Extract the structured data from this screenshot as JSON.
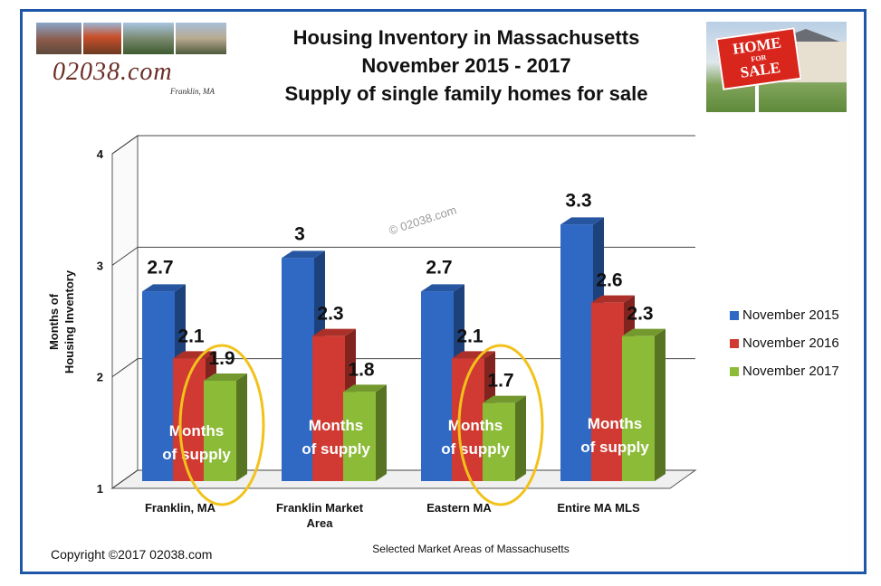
{
  "header": {
    "title_lines": [
      "Housing Inventory in Massachusetts",
      "November 2015 - 2017",
      "Supply of single family homes for sale"
    ]
  },
  "logo": {
    "text": "02038.com",
    "subtext": "Franklin, MA"
  },
  "sale_sign": {
    "line1": "HOME",
    "line2": "FOR",
    "line3": "SALE"
  },
  "watermark": "© 02038.com",
  "copyright": "Copyright ©2017  02038.com",
  "colors": {
    "frame": "#1f57a8",
    "series": [
      "#2f69c4",
      "#d03a32",
      "#8cbb38"
    ],
    "annotation_ring": "#f2c21b"
  },
  "chart_data": {
    "type": "bar",
    "title": "Housing Inventory in Massachusetts November 2015 - 2017 Supply of single family homes for sale",
    "categories": [
      "Franklin, MA",
      "Franklin Market Area",
      "Eastern MA",
      "Entire MA MLS"
    ],
    "category_lines": [
      [
        "Franklin, MA"
      ],
      [
        "Franklin Market",
        "Area"
      ],
      [
        "Eastern MA"
      ],
      [
        "Entire MA MLS"
      ]
    ],
    "series": [
      {
        "name": "November 2015",
        "values": [
          2.7,
          3,
          2.7,
          3.3
        ]
      },
      {
        "name": "November 2016",
        "values": [
          2.1,
          2.3,
          2.1,
          2.6
        ]
      },
      {
        "name": "November 2017",
        "values": [
          1.9,
          1.8,
          1.7,
          2.3
        ]
      }
    ],
    "ylabel": "Months of Housing Inventory",
    "ylabel_lines": [
      "Months of",
      "Housing Inventory"
    ],
    "xlabel": "Selected Market Areas of Massachusetts",
    "ylim": [
      1,
      4
    ],
    "yticks": [
      1,
      2,
      3,
      4
    ],
    "grid": true,
    "legend_position": "right",
    "annotation_text": [
      "Months",
      "of supply"
    ],
    "highlighted": [
      {
        "category": "Franklin, MA",
        "series": "November 2017"
      },
      {
        "category": "Eastern MA",
        "series": "November 2017"
      }
    ]
  }
}
